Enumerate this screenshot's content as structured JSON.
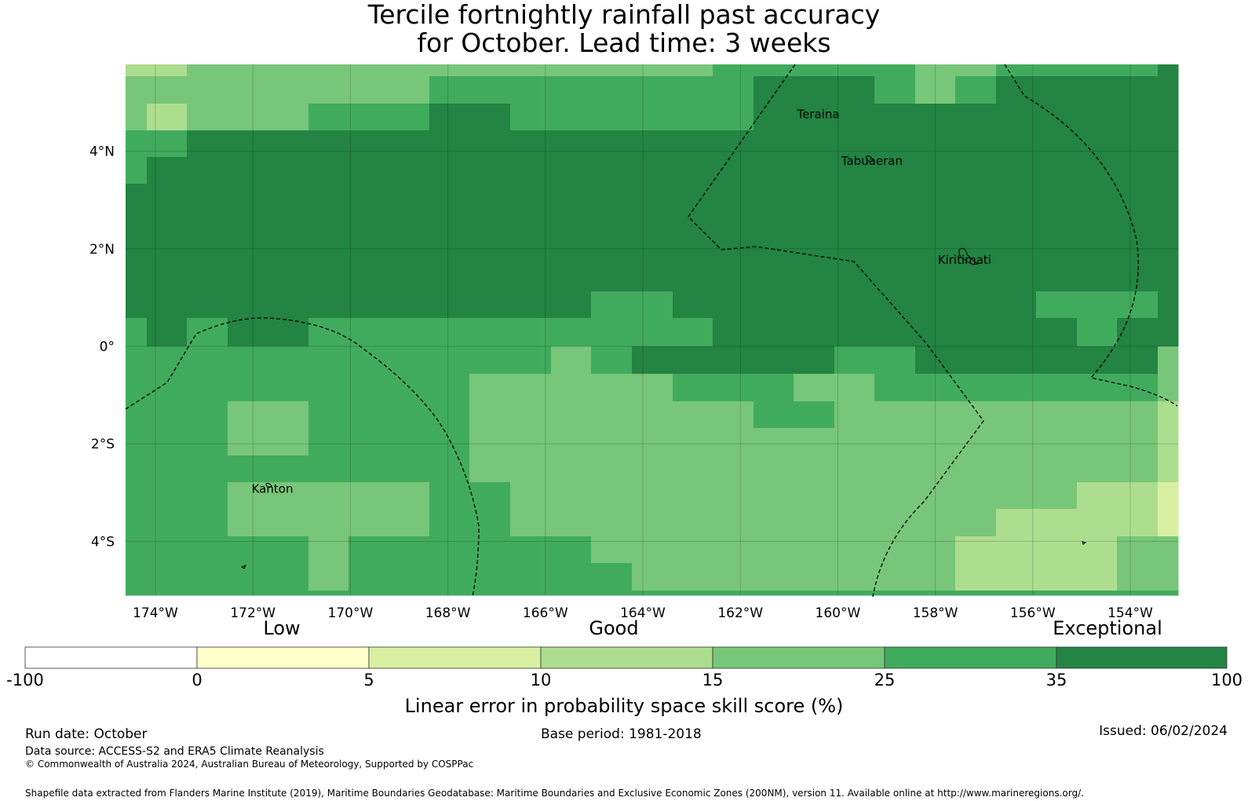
{
  "title": {
    "line1": "Tercile fortnightly rainfall past accuracy",
    "line2": "for October. Lead time: 3 weeks"
  },
  "map": {
    "lat_labels": [
      "4°N",
      "2°N",
      "0°",
      "2°S",
      "4°S"
    ],
    "lat_values": [
      4,
      2,
      0,
      -2,
      -4
    ],
    "lon_labels": [
      "174°W",
      "172°W",
      "170°W",
      "168°W",
      "166°W",
      "164°W",
      "162°W",
      "160°W",
      "158°W",
      "156°W",
      "154°W"
    ],
    "lon_values": [
      -174,
      -172,
      -170,
      -168,
      -166,
      -164,
      -162,
      -160,
      -158,
      -156,
      -154
    ],
    "places": [
      {
        "name": "Teraina",
        "lon": -160.4,
        "lat": 4.68
      },
      {
        "name": "Tabuaeran",
        "lon": -159.3,
        "lat": 3.72
      },
      {
        "name": "Kiritimati",
        "lon": -157.4,
        "lat": 1.69
      },
      {
        "name": "Kanton",
        "lon": -171.6,
        "lat": -3.0
      }
    ],
    "palette": [
      "#ffffff",
      "#ffffcc",
      "#d9f0a3",
      "#addd8e",
      "#78c679",
      "#41ab5d",
      "#238443"
    ]
  },
  "colorbar": {
    "categories": [
      "Low",
      "Good",
      "Exceptional"
    ],
    "ticks": [
      "-100",
      "0",
      "5",
      "10",
      "15",
      "25",
      "35",
      "100"
    ],
    "colors": [
      "#ffffff",
      "#ffffcc",
      "#d9f0a3",
      "#addd8e",
      "#78c679",
      "#41ab5d",
      "#238443"
    ],
    "label": "Linear error in probability space skill score (%)"
  },
  "footer": {
    "run_date": "Run date: October",
    "base_period": "Base period: 1981-2018",
    "issued": "Issued: 06/02/2024",
    "data_source": "Data source: ACCESS-S2 and ERA5 Climate Reanalysis",
    "copyright": "© Commonwealth of Australia 2024, Australian Bureau of Meteorology, Supported by COSPPac",
    "shapefile": "Shapefile data extracted from Flanders Marine Institute (2019), Maritime Boundaries Geodatabase: Maritime Boundaries and Exclusive Economic Zones (200NM), version 11. Available online at http://www.marineregions.org/."
  }
}
